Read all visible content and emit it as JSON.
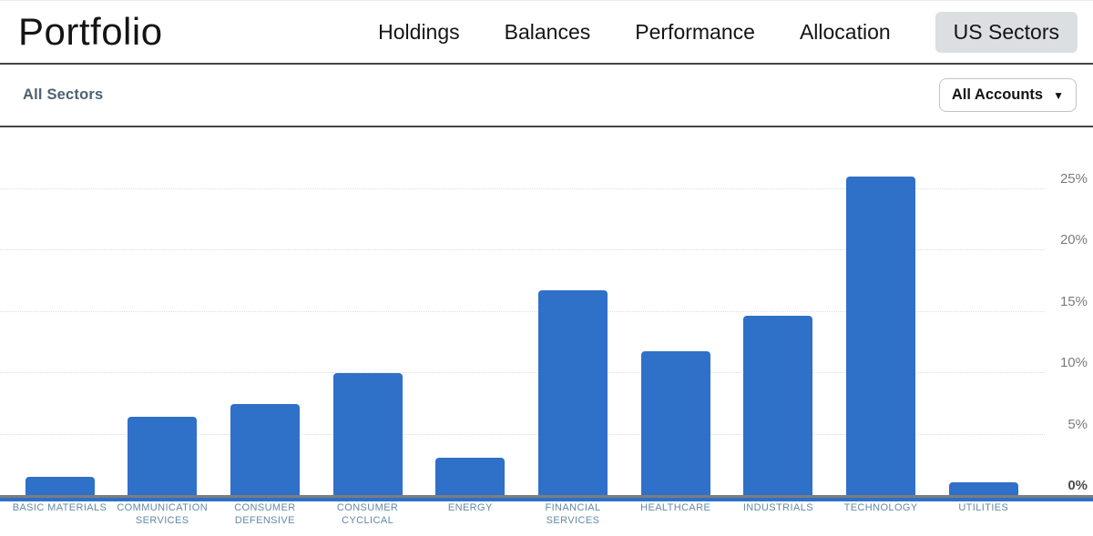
{
  "header": {
    "title": "Portfolio",
    "nav": [
      {
        "label": "Holdings",
        "active": false
      },
      {
        "label": "Balances",
        "active": false
      },
      {
        "label": "Performance",
        "active": false
      },
      {
        "label": "Allocation",
        "active": false
      },
      {
        "label": "US Sectors",
        "active": true
      }
    ]
  },
  "subheader": {
    "title": "All Sectors",
    "account_filter": {
      "label": "All Accounts",
      "caret": "▼"
    }
  },
  "chart_data": {
    "type": "bar",
    "title": "",
    "categories": [
      "BASIC MATERIALS",
      "COMMUNICATION SERVICES",
      "CONSUMER DEFENSIVE",
      "CONSUMER CYCLICAL",
      "ENERGY",
      "FINANCIAL SERVICES",
      "HEALTHCARE",
      "INDUSTRIALS",
      "TECHNOLOGY",
      "UTILITIES"
    ],
    "values": [
      1.5,
      6.4,
      7.4,
      9.9,
      3.0,
      16.7,
      11.7,
      14.6,
      25.9,
      1.0
    ],
    "unit": "%",
    "xlabel": "",
    "ylabel": "",
    "ylim": [
      0,
      27
    ],
    "yticks": [
      0,
      5,
      10,
      15,
      20,
      25
    ],
    "ytick_labels": [
      "0%",
      "5%",
      "10%",
      "15%",
      "20%",
      "25%"
    ],
    "grid": "horizontal-dotted",
    "axis_labels_side": "right",
    "legend": "none"
  },
  "colors": {
    "bar_blue": "#2F70C8",
    "active_tab_bg": "#DBDFE2",
    "section_title": "#4C6172",
    "category_label": "#6389A7",
    "tick_label": "#7B7B7B",
    "axis_line": "#7D7D7D"
  }
}
